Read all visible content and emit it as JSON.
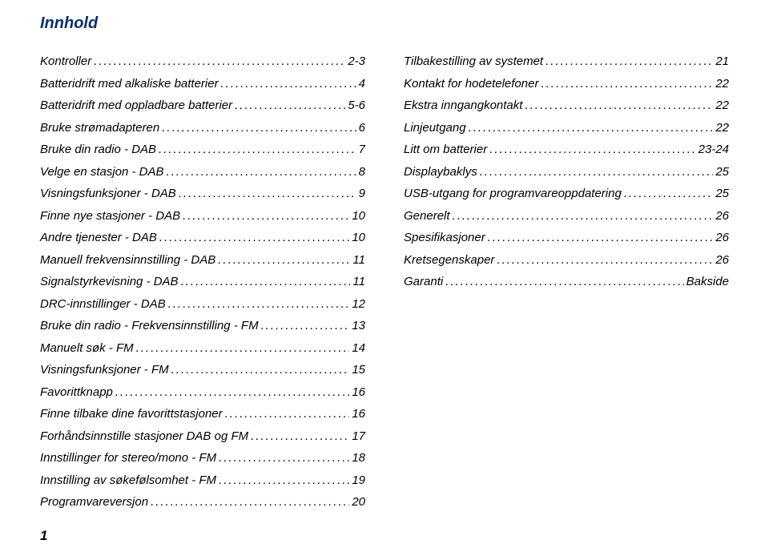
{
  "title": "Innhold",
  "page_number": "1",
  "colors": {
    "title_color": "#0d2f6a",
    "text_color": "#000000",
    "background": "#ffffff"
  },
  "fonts": {
    "title_size_pt": 20,
    "entry_size_pt": 15,
    "style": "italic"
  },
  "left_column": [
    {
      "label": "Kontroller",
      "page": "2-3"
    },
    {
      "label": "Batteridrift med alkaliske batterier",
      "page": "4"
    },
    {
      "label": "Batteridrift med oppladbare batterier",
      "page": "5-6"
    },
    {
      "label": "Bruke strømadapteren",
      "page": "6"
    },
    {
      "label": "Bruke din radio - DAB",
      "page": "7"
    },
    {
      "label": "Velge en stasjon - DAB",
      "page": "8"
    },
    {
      "label": "Visningsfunksjoner - DAB",
      "page": "9"
    },
    {
      "label": "Finne nye stasjoner - DAB",
      "page": "10"
    },
    {
      "label": "Andre tjenester - DAB",
      "page": "10"
    },
    {
      "label": "Manuell frekvensinnstilling - DAB",
      "page": "11"
    },
    {
      "label": "Signalstyrkevisning - DAB",
      "page": "11"
    },
    {
      "label": "DRC-innstillinger - DAB",
      "page": "12"
    },
    {
      "label": "Bruke din radio - Frekvensinnstilling - FM",
      "page": "13"
    },
    {
      "label": "Manuelt søk - FM",
      "page": "14"
    },
    {
      "label": "Visningsfunksjoner - FM",
      "page": "15"
    },
    {
      "label": "Favorittknapp",
      "page": "16"
    },
    {
      "label": "Finne tilbake dine favorittstasjoner",
      "page": "16"
    },
    {
      "label": "Forhåndsinnstille stasjoner DAB og FM",
      "page": "17"
    },
    {
      "label": "Innstillinger for stereo/mono - FM",
      "page": "18"
    },
    {
      "label": "Innstilling av søkefølsomhet - FM",
      "page": "19"
    },
    {
      "label": "Programvareversjon",
      "page": "20"
    }
  ],
  "right_column": [
    {
      "label": "Tilbakestilling av systemet",
      "page": "21"
    },
    {
      "label": "Kontakt for hodetelefoner",
      "page": "22"
    },
    {
      "label": "Ekstra inngangkontakt",
      "page": "22"
    },
    {
      "label": "Linjeutgang",
      "page": "22"
    },
    {
      "label": "Litt om batterier",
      "page": "23-24"
    },
    {
      "label": "Displaybaklys",
      "page": "25"
    },
    {
      "label": "USB-utgang for programvareoppdatering",
      "page": "25"
    },
    {
      "label": "Generelt",
      "page": "26"
    },
    {
      "label": "Spesifikasjoner",
      "page": "26"
    },
    {
      "label": "Kretsegenskaper",
      "page": "26"
    },
    {
      "label": "Garanti",
      "page": "Bakside"
    }
  ]
}
